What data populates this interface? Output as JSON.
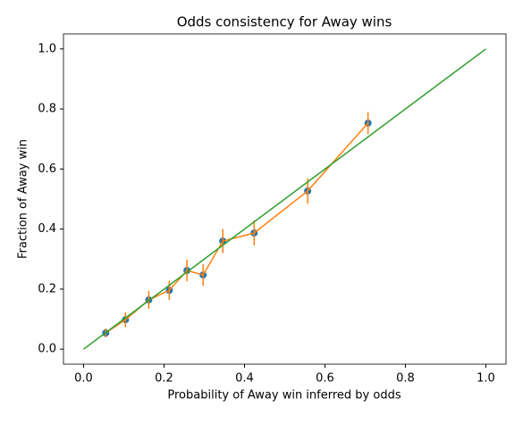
{
  "chart_data": {
    "type": "errorbar",
    "title": "Odds consistency for Away wins",
    "xlabel": "Probability of Away win inferred by odds",
    "ylabel": "Fraction of Away win",
    "xlim": [
      -0.05,
      1.05
    ],
    "ylim": [
      -0.05,
      1.05
    ],
    "xticks": [
      {
        "value": 0,
        "label": "0.0"
      },
      0.2,
      0.4,
      0.6,
      0.8,
      {
        "value": 1,
        "label": "1.0"
      }
    ],
    "yticks": [
      {
        "value": 0,
        "label": "0.0"
      },
      0.2,
      0.4,
      0.6,
      0.8,
      {
        "value": 1,
        "label": "1.0"
      }
    ],
    "series": [
      {
        "kind": "scatter",
        "color": "#1f77b4",
        "x": [
          0.055,
          0.104,
          0.162,
          0.213,
          0.257,
          0.297,
          0.346,
          0.424,
          0.557,
          0.707
        ],
        "values": [
          0.054,
          0.098,
          0.164,
          0.196,
          0.262,
          0.247,
          0.36,
          0.387,
          0.527,
          0.753
        ]
      },
      {
        "kind": "errorbar",
        "color": "#ff7f0e",
        "x": [
          0.055,
          0.104,
          0.162,
          0.213,
          0.257,
          0.297,
          0.346,
          0.424,
          0.557,
          0.707
        ],
        "values": [
          0.054,
          0.098,
          0.164,
          0.196,
          0.262,
          0.247,
          0.36,
          0.387,
          0.527,
          0.753
        ],
        "errors": [
          0.015,
          0.025,
          0.03,
          0.032,
          0.036,
          0.036,
          0.04,
          0.042,
          0.042,
          0.037
        ]
      },
      {
        "kind": "line",
        "color": "#2ca02c",
        "x": [
          0,
          1
        ],
        "values": [
          0,
          1
        ]
      }
    ]
  }
}
